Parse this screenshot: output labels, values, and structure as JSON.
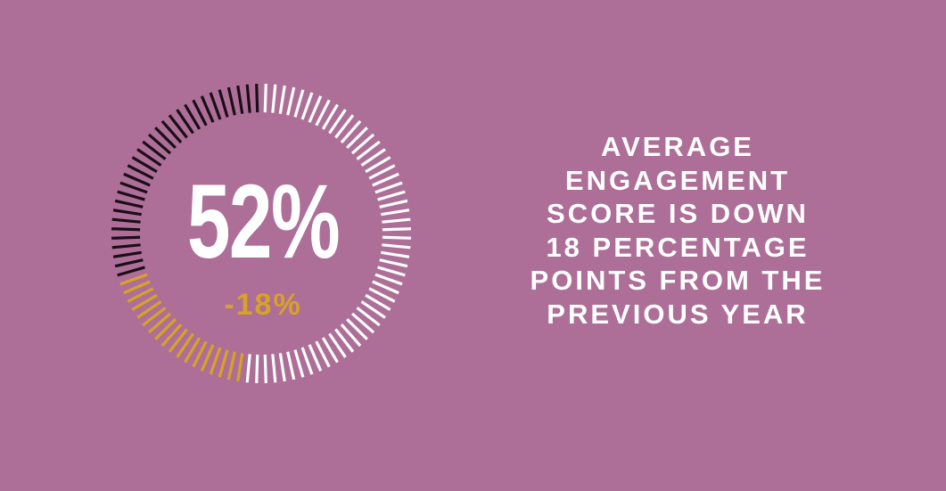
{
  "colors": {
    "background": "#ad6f98",
    "text_primary": "#ffffff",
    "accent_gold": "#d8a226",
    "dark_ticks": "#1b0e17",
    "light_ticks": "#ffffff"
  },
  "chart_data": {
    "type": "radial-gauge",
    "value_label": "52%",
    "delta_label": "-18%",
    "value_percent": 52,
    "delta_percent": -18,
    "segments": [
      {
        "kind": "current",
        "percent": 52,
        "color": "#ffffff"
      },
      {
        "kind": "decline",
        "percent": 18,
        "color": "#d8a226"
      },
      {
        "kind": "remainder",
        "percent": 30,
        "color": "#1b0e17"
      }
    ]
  },
  "statement": {
    "lines": [
      "AVERAGE",
      "ENGAGEMENT",
      "SCORE IS DOWN",
      "18 PERCENTAGE",
      "POINTS FROM THE",
      "PREVIOUS YEAR"
    ]
  }
}
